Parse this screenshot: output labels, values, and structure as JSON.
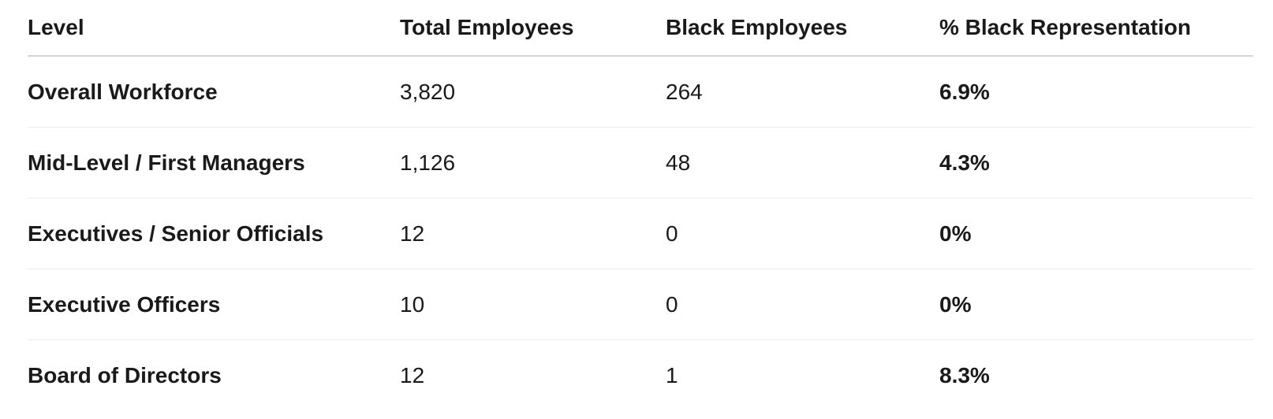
{
  "table": {
    "headers": {
      "level": "Level",
      "total": "Total Employees",
      "black": "Black Employees",
      "pct": "% Black Representation"
    },
    "rows": [
      {
        "level": "Overall Workforce",
        "total": "3,820",
        "black": "264",
        "pct": "6.9%"
      },
      {
        "level": "Mid-Level / First Managers",
        "total": "1,126",
        "black": "48",
        "pct": "4.3%"
      },
      {
        "level": "Executives / Senior Officials",
        "total": "12",
        "black": "0",
        "pct": "0%"
      },
      {
        "level": "Executive Officers",
        "total": "10",
        "black": "0",
        "pct": "0%"
      },
      {
        "level": "Board of Directors",
        "total": "12",
        "black": "1",
        "pct": "8.3%"
      }
    ]
  }
}
